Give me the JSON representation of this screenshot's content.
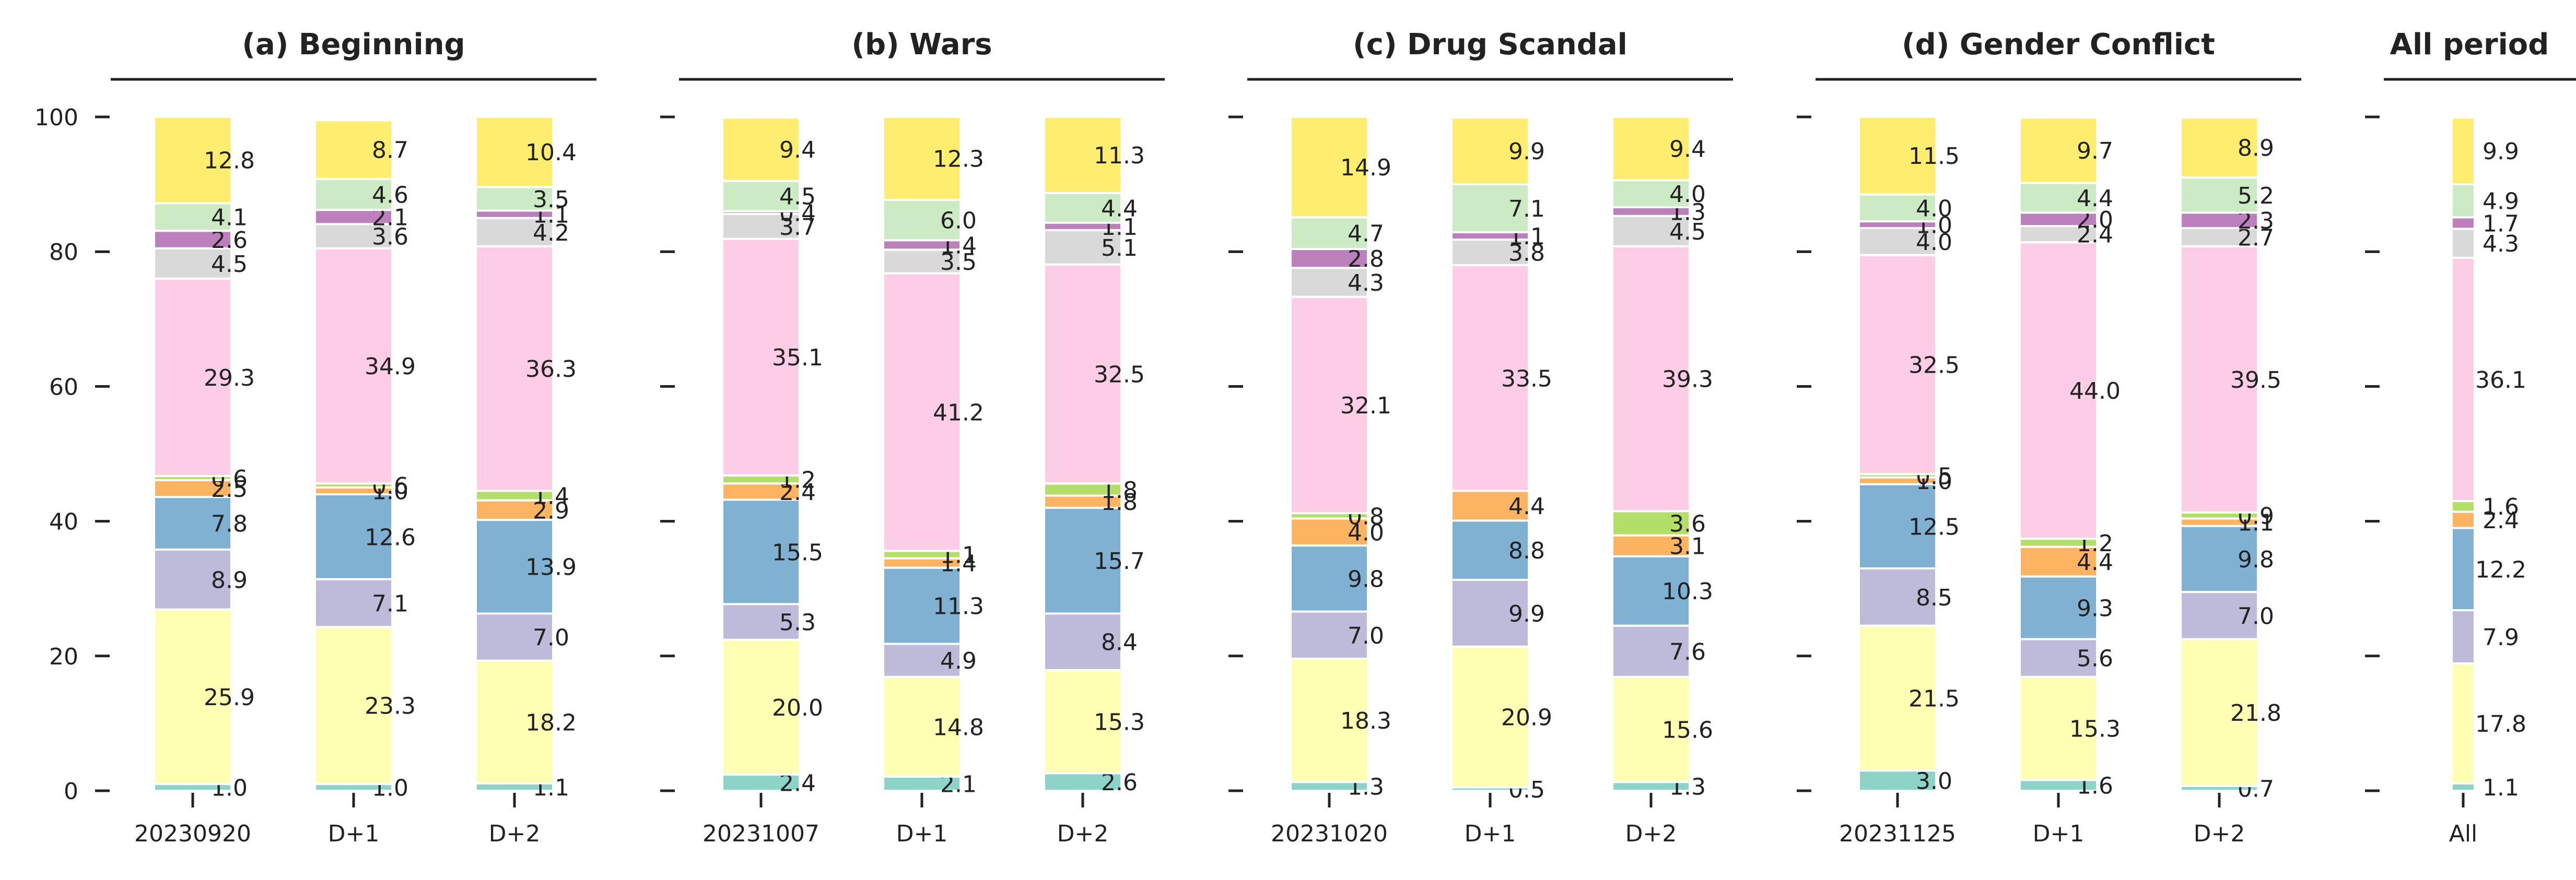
{
  "chart_data": {
    "type": "bar",
    "stacked": true,
    "ylim": [
      0,
      100
    ],
    "yticks": [
      0,
      20,
      40,
      60,
      80,
      100
    ],
    "grid": false,
    "colors": [
      "#8dd3c7",
      "#ffffb3",
      "#bebada",
      "#80b1d3",
      "#fdb462",
      "#b3de69",
      "#fccde5",
      "#d9d9d9",
      "#bc80bd",
      "#ccebc5",
      "#ffed6f"
    ],
    "panels": [
      {
        "title": "(a) Beginning",
        "categories": [
          "20230920",
          "D+1",
          "D+2"
        ],
        "stacks": [
          [
            1.0,
            25.9,
            8.9,
            7.8,
            2.5,
            0.6,
            29.3,
            4.5,
            2.6,
            4.1,
            12.8
          ],
          [
            1.0,
            23.3,
            7.1,
            12.6,
            1.0,
            0.6,
            34.9,
            3.6,
            2.1,
            4.6,
            8.7
          ],
          [
            1.1,
            18.2,
            7.0,
            13.9,
            2.9,
            1.4,
            36.3,
            4.2,
            1.1,
            3.5,
            10.4
          ]
        ]
      },
      {
        "title": "(b) Wars",
        "categories": [
          "20231007",
          "D+1",
          "D+2"
        ],
        "stacks": [
          [
            2.4,
            20.0,
            5.3,
            15.5,
            2.4,
            1.2,
            35.1,
            3.7,
            0.4,
            4.5,
            9.4
          ],
          [
            2.1,
            14.8,
            4.9,
            11.3,
            1.4,
            1.1,
            41.2,
            3.5,
            1.4,
            6.0,
            12.3
          ],
          [
            2.6,
            15.3,
            8.4,
            15.7,
            1.8,
            1.8,
            32.5,
            5.1,
            1.1,
            4.4,
            11.3
          ]
        ]
      },
      {
        "title": "(c) Drug Scandal",
        "categories": [
          "20231020",
          "D+1",
          "D+2"
        ],
        "stacks": [
          [
            1.3,
            18.3,
            7.0,
            9.8,
            4.0,
            0.8,
            32.1,
            4.3,
            2.8,
            4.7,
            14.9
          ],
          [
            0.5,
            20.9,
            9.9,
            8.8,
            4.4,
            0.0,
            33.5,
            3.8,
            1.1,
            7.1,
            9.9
          ],
          [
            1.3,
            15.6,
            7.6,
            10.3,
            3.1,
            3.6,
            39.3,
            4.5,
            1.3,
            4.0,
            9.4
          ]
        ]
      },
      {
        "title": "(d) Gender Conflict",
        "categories": [
          "20231125",
          "D+1",
          "D+2"
        ],
        "stacks": [
          [
            3.0,
            21.5,
            8.5,
            12.5,
            1.0,
            0.5,
            32.5,
            4.0,
            1.0,
            4.0,
            11.5
          ],
          [
            1.6,
            15.3,
            5.6,
            9.3,
            4.4,
            1.2,
            44.0,
            2.4,
            2.0,
            4.4,
            9.7
          ],
          [
            0.7,
            21.8,
            7.0,
            9.8,
            1.1,
            0.9,
            39.5,
            2.7,
            2.3,
            5.2,
            8.9
          ]
        ]
      },
      {
        "title": "All period",
        "categories": [
          "All"
        ],
        "stacks": [
          [
            1.1,
            17.8,
            7.9,
            12.2,
            2.4,
            1.6,
            36.1,
            4.3,
            1.7,
            4.9,
            9.9
          ]
        ]
      }
    ]
  }
}
